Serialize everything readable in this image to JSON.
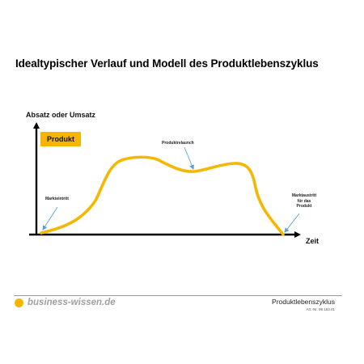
{
  "page": {
    "title": "Idealtypischer Verlauf und Modell des Produktlebenszyklus"
  },
  "diagram": {
    "y_axis_label": "Absatz oder Umsatz",
    "x_axis_label": "Zeit",
    "badge_label": "Produkt",
    "annotations": {
      "market_entry": "Markteintritt",
      "relaunch": "Produktrelaunch",
      "market_exit_lines": [
        "Marktaustritt",
        "für das",
        "Produkt"
      ]
    }
  },
  "footer": {
    "brand": "business-wissen.de",
    "doc_title": "Produktlebenszyklus",
    "art_nr": "Art.-Nr. 99.163.01"
  },
  "colors": {
    "accent": "#f7b500",
    "curve": "#f5b800",
    "axis": "#000000",
    "arrow": "#5aa0d8",
    "brand_gray": "#a0a0a0"
  },
  "icons": {
    "brand_mark": "orange-dot-icon"
  }
}
